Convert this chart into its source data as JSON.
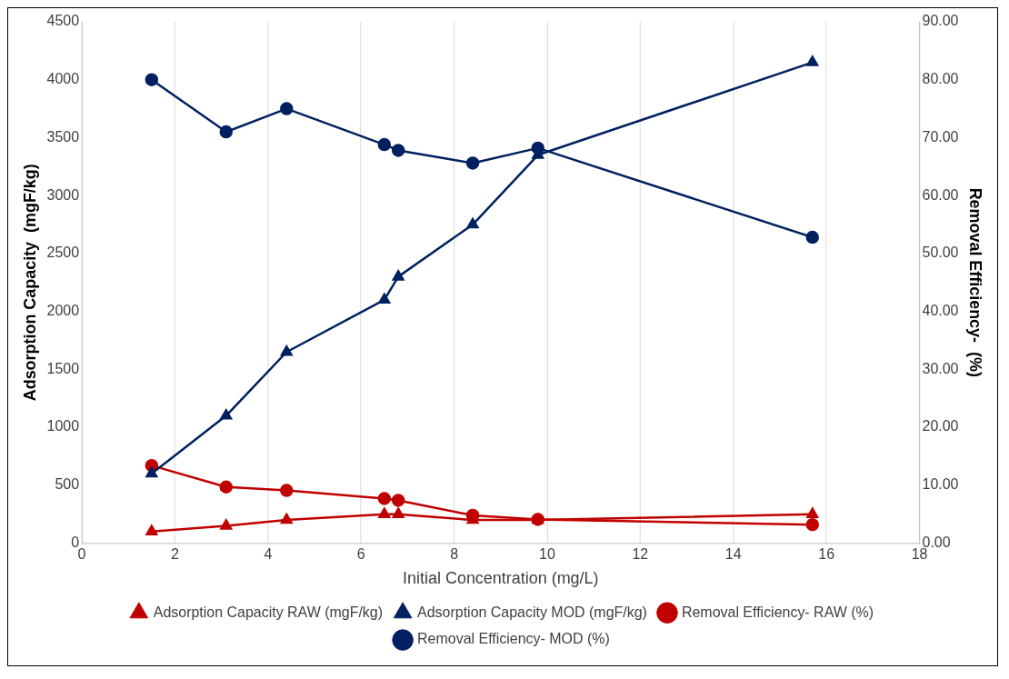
{
  "chart_data": {
    "type": "line",
    "xlabel": "Initial Concentration (mg/L)",
    "ylabel": "Adsorption Capacity  (mgF/kg)",
    "y2label": "Removal Efficiency-  (%)",
    "x": [
      1.5,
      3.1,
      4.4,
      6.5,
      6.8,
      8.4,
      9.8,
      15.7
    ],
    "xlim": [
      0,
      18
    ],
    "xticks": [
      0,
      2,
      4,
      6,
      8,
      10,
      12,
      14,
      16,
      18
    ],
    "ylim": [
      0,
      4500
    ],
    "yticks": [
      0,
      500,
      1000,
      1500,
      2000,
      2500,
      3000,
      3500,
      4000,
      4500
    ],
    "y2lim": [
      0,
      90
    ],
    "y2ticks": [
      {
        "value": 0,
        "label": "0.00"
      },
      {
        "value": 10,
        "label": "10.00"
      },
      {
        "value": 20,
        "label": "20.00"
      },
      {
        "value": 30,
        "label": "30.00"
      },
      {
        "value": 40,
        "label": "40.00"
      },
      {
        "value": 50,
        "label": "50.00"
      },
      {
        "value": 60,
        "label": "60.00"
      },
      {
        "value": 70,
        "label": "70.00"
      },
      {
        "value": 80,
        "label": "80.00"
      },
      {
        "value": 90,
        "label": "90.00"
      }
    ],
    "grid": "x",
    "legend": "bottom",
    "line_style": "solid",
    "series": [
      {
        "name": "Adsorption Capacity RAW (mgF/kg)",
        "color": "#c00000",
        "marker": "triangle",
        "values": [
          100,
          150,
          200,
          250,
          250,
          200,
          200,
          250
        ]
      },
      {
        "name": "Adsorption Capacity MOD (mgF/kg)",
        "color": "#002060",
        "marker": "triangle",
        "values": [
          600,
          1100,
          1650,
          2100,
          2300,
          2750,
          3350,
          4150
        ]
      },
      {
        "name": "Removal Efficiency- RAW (%)",
        "color": "#c00000",
        "marker": "circle",
        "axis": "y2",
        "values": [
          13.4,
          9.7,
          9.1,
          7.7,
          7.4,
          4.8,
          4.1,
          3.2
        ]
      },
      {
        "name": "Removal Efficiency- MOD (%)",
        "color": "#002060",
        "marker": "circle",
        "axis": "y2",
        "values": [
          80,
          71,
          75,
          68.8,
          67.8,
          65.6,
          68.2,
          52.8
        ]
      }
    ]
  }
}
